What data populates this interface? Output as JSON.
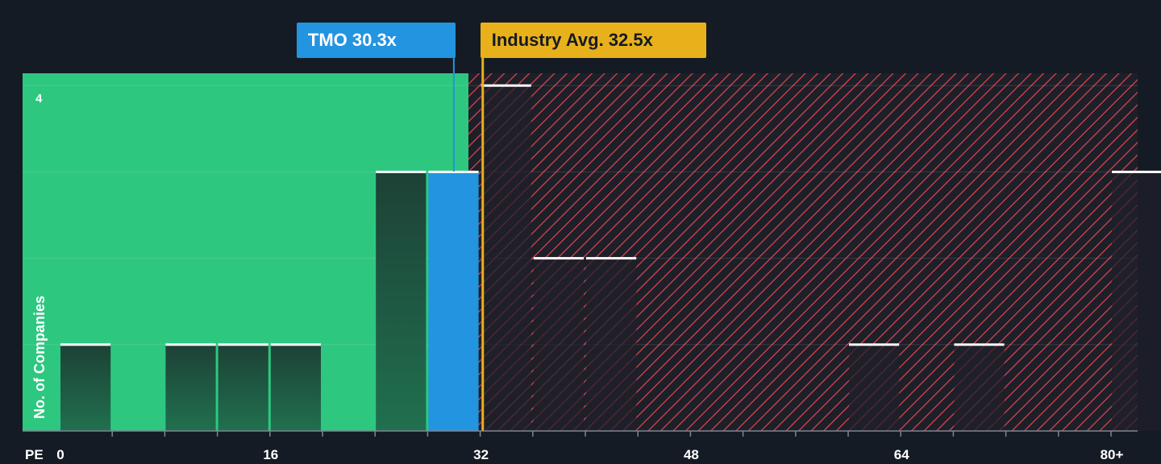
{
  "chart_data": {
    "type": "bar",
    "xlabel": "PE",
    "ylabel": "No. of Companies",
    "x_ticks": [
      "0",
      "16",
      "32",
      "48",
      "64",
      "80+"
    ],
    "x_tick_values": [
      0,
      16,
      32,
      48,
      64,
      80
    ],
    "y_tick_labels": [
      "4"
    ],
    "ylim": [
      0,
      4
    ],
    "xlim": [
      -3,
      82
    ],
    "bin_width": 4,
    "bars": [
      {
        "x_start": 0,
        "value": 1
      },
      {
        "x_start": 8,
        "value": 1
      },
      {
        "x_start": 12,
        "value": 1
      },
      {
        "x_start": 16,
        "value": 1
      },
      {
        "x_start": 24,
        "value": 3
      },
      {
        "x_start": 28,
        "value": 3,
        "highlight": true
      },
      {
        "x_start": 32,
        "value": 4
      },
      {
        "x_start": 36,
        "value": 2
      },
      {
        "x_start": 40,
        "value": 2
      },
      {
        "x_start": 60,
        "value": 1
      },
      {
        "x_start": 68,
        "value": 1
      },
      {
        "x_start": 80,
        "value": 3
      }
    ],
    "company": {
      "label": "TMO 30.3x",
      "value": 30.3
    },
    "industry_avg": {
      "label": "Industry Avg. 32.5x",
      "value": 32.5
    },
    "colors": {
      "background": "#151b24",
      "fair_region": "#2ec780",
      "over_region_stripe": "#d8434a",
      "highlight_bar": "#2394e0",
      "company_callout": "#2394e0",
      "industry_callout": "#e8b11c",
      "bar_top": "#ffffff"
    }
  }
}
